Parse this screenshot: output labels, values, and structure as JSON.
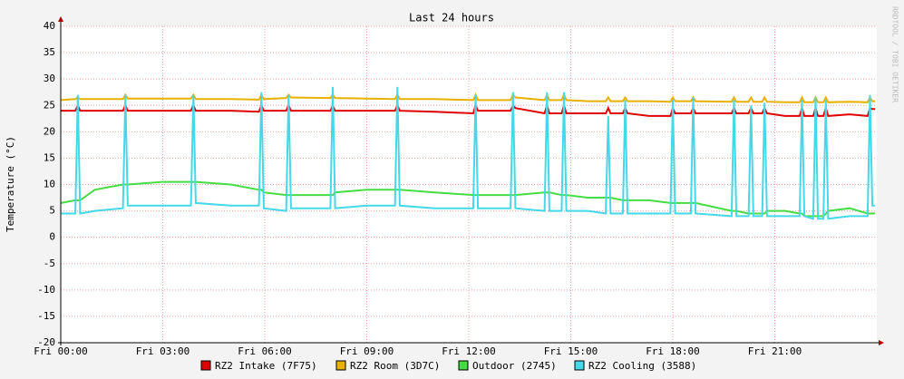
{
  "chart_data": {
    "type": "line",
    "title": "Last 24 hours",
    "y_label": "Temperature (°C)",
    "side_label": "RRDTOOL / TOBI OETIKER",
    "x": [
      0,
      0.43,
      0.5,
      0.57,
      1,
      1.83,
      1.9,
      1.97,
      3,
      3.83,
      3.9,
      3.97,
      5,
      5.83,
      5.9,
      5.97,
      6.63,
      6.7,
      6.77,
      7.93,
      8.0,
      8.07,
      9,
      9.83,
      9.9,
      9.97,
      11,
      12.13,
      12.2,
      12.27,
      13.23,
      13.3,
      13.37,
      14.23,
      14.3,
      14.37,
      14.73,
      14.8,
      14.87,
      15.5,
      16.03,
      16.1,
      16.17,
      16.53,
      16.6,
      16.67,
      17.3,
      17.93,
      18.0,
      18.07,
      18.53,
      18.6,
      18.67,
      19.73,
      19.8,
      19.87,
      20.23,
      20.3,
      20.37,
      20.63,
      20.7,
      20.77,
      21.3,
      21.73,
      21.8,
      21.87,
      22.13,
      22.2,
      22.27,
      22.43,
      22.5,
      22.57,
      23.2,
      23.73,
      23.8,
      23.87,
      23.95
    ],
    "series": [
      {
        "name": "RZ2 Intake (7F75)",
        "color": "#e00000",
        "values": [
          24,
          24,
          25,
          24,
          24,
          24,
          25,
          24,
          24,
          24,
          25,
          24,
          24,
          23.8,
          25,
          24,
          24,
          25,
          24,
          24,
          25,
          24,
          24,
          24,
          25,
          24,
          23.8,
          23.5,
          25,
          24,
          24,
          25,
          24.5,
          23.5,
          25,
          23.5,
          23.5,
          25,
          23.5,
          23.5,
          23.5,
          24.5,
          23.5,
          23.5,
          24.5,
          23.5,
          23,
          23,
          24.5,
          23.5,
          23.5,
          24.5,
          23.5,
          23.5,
          24.5,
          23.5,
          23.5,
          24.5,
          23.5,
          23.5,
          24.5,
          23.5,
          23,
          23,
          24.5,
          23,
          23,
          24.5,
          23,
          23,
          24.5,
          23,
          23.3,
          23,
          24.5,
          24.3,
          24.3
        ]
      },
      {
        "name": "RZ2 Room (3D7C)",
        "color": "#e8b000",
        "values": [
          26,
          26.2,
          26.5,
          26.2,
          26.2,
          26.2,
          27,
          26.3,
          26.3,
          26.3,
          27,
          26.2,
          26.2,
          26.1,
          27,
          26.2,
          26.4,
          27,
          26.5,
          26.4,
          27,
          26.4,
          26.3,
          26.2,
          27,
          26.2,
          26.2,
          26,
          27,
          26,
          26,
          27,
          26.5,
          26,
          27,
          26,
          26,
          27,
          26,
          25.8,
          25.8,
          26.5,
          25.8,
          25.8,
          26.5,
          25.8,
          25.8,
          25.7,
          26.5,
          25.8,
          25.8,
          26.5,
          25.8,
          25.7,
          26.5,
          25.7,
          25.7,
          26.5,
          25.7,
          25.7,
          26.5,
          25.7,
          25.6,
          25.6,
          26.5,
          25.6,
          25.6,
          26.5,
          25.6,
          25.6,
          26.5,
          25.6,
          25.7,
          25.6,
          26.5,
          25.8,
          25.8
        ]
      },
      {
        "name": "Outdoor (2745)",
        "color": "#44dd44",
        "values": [
          6.5,
          7,
          7,
          7,
          9,
          10,
          10,
          10,
          10.5,
          10.5,
          10.5,
          10.5,
          10,
          9,
          9,
          8.5,
          8,
          8,
          8,
          8,
          8,
          8.5,
          9,
          9,
          9,
          9,
          8.5,
          8,
          8,
          8,
          8,
          8,
          8,
          8.5,
          8.5,
          8.5,
          8,
          8,
          8,
          7.5,
          7.5,
          7.5,
          7.5,
          7,
          7,
          7,
          7,
          6.5,
          6.5,
          6.5,
          6.5,
          6.5,
          6.5,
          5,
          5,
          5,
          4.5,
          4.5,
          4.5,
          4.5,
          4.5,
          5,
          5,
          4.5,
          4.5,
          4,
          4,
          4,
          4,
          4,
          4.5,
          5,
          5.5,
          4.5,
          4.5,
          4.5,
          4.5
        ]
      },
      {
        "name": "RZ2 Cooling (3588)",
        "color": "#44d8e8",
        "values": [
          4.5,
          4.5,
          27,
          4.5,
          5,
          5.5,
          27,
          6,
          6,
          6,
          27,
          6.5,
          6,
          6,
          27.5,
          5.5,
          5,
          27,
          5.5,
          5.5,
          28.5,
          5.5,
          6,
          6,
          28.5,
          6,
          5.5,
          5.5,
          27,
          5.5,
          5.5,
          27.5,
          5.5,
          5,
          27.5,
          5,
          5,
          27.5,
          5,
          5,
          4.5,
          23,
          4.5,
          4.5,
          26,
          4.5,
          4.5,
          4.5,
          26,
          4.5,
          4.5,
          26.5,
          4.5,
          4,
          26,
          4,
          4,
          25,
          4,
          4,
          25.5,
          4,
          4,
          4,
          26,
          4,
          3.5,
          26.5,
          3.5,
          3.5,
          26,
          3.5,
          4,
          4,
          27,
          6,
          6
        ]
      }
    ],
    "xlim": [
      0,
      24
    ],
    "xticks": [
      {
        "value": 0,
        "label": "Fri 00:00"
      },
      {
        "value": 3,
        "label": "Fri 03:00"
      },
      {
        "value": 6,
        "label": "Fri 06:00"
      },
      {
        "value": 9,
        "label": "Fri 09:00"
      },
      {
        "value": 12,
        "label": "Fri 12:00"
      },
      {
        "value": 15,
        "label": "Fri 15:00"
      },
      {
        "value": 18,
        "label": "Fri 18:00"
      },
      {
        "value": 21,
        "label": "Fri 21:00"
      }
    ],
    "ylim": [
      -20,
      40
    ],
    "yticks": [
      -20,
      -15,
      -10,
      -5,
      0,
      5,
      10,
      15,
      20,
      25,
      30,
      35,
      40
    ],
    "grid": true
  }
}
